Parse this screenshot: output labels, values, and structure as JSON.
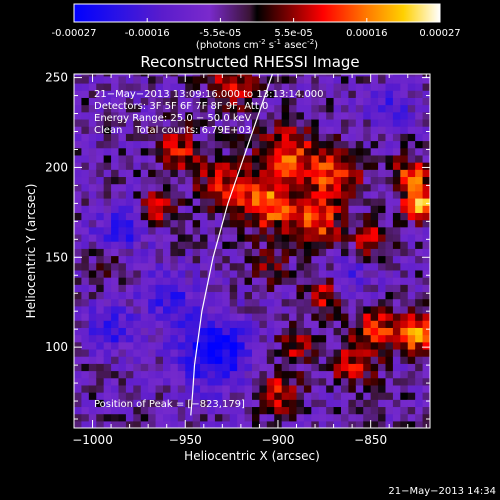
{
  "colorbar": {
    "ticks": [
      "-0.00027",
      "-0.00016",
      "-5.5e-05",
      "5.5e-05",
      "0.00016",
      "0.00027"
    ],
    "units_main": "(photons cm",
    "units_sup1": "-2",
    "units_mid1": " s",
    "units_sup2": "-1",
    "units_mid2": " asec",
    "units_sup3": "-2",
    "units_end": ")"
  },
  "chart_data": {
    "type": "heatmap",
    "title": "Reconstructed RHESSI Image",
    "xlabel": "Heliocentric X (arcsec)",
    "ylabel": "Heliocentric Y (arcsec)",
    "xlim": [
      -1010,
      -818
    ],
    "ylim": [
      55,
      252
    ],
    "x_ticks": [
      -1000,
      -950,
      -900,
      -850
    ],
    "y_ticks": [
      100,
      150,
      200,
      250
    ],
    "x_tick_labels": [
      "−1000",
      "−950",
      "−900",
      "−850"
    ],
    "y_tick_labels": [
      "100",
      "150",
      "200",
      "250"
    ],
    "colorbar_range": [
      -0.00027,
      0.00027
    ],
    "annotations": [
      "21−May−2013 13:09:16.000 to 13:13:14.000",
      "Detectors: 3F 5F 6F 7F 8F 9F, Att 0",
      "Energy Range: 25.0 − 50.0 keV",
      "Clean    Total counts: 6.79E+03"
    ],
    "peak_label": "Position of Peak = [−823,179]",
    "peak_position": [
      -823,
      179
    ],
    "limb_points": [
      [
        -903,
        252
      ],
      [
        -907,
        240
      ],
      [
        -912,
        225
      ],
      [
        -917,
        210
      ],
      [
        -922,
        195
      ],
      [
        -927,
        180
      ],
      [
        -931,
        165
      ],
      [
        -935,
        150
      ],
      [
        -938,
        135
      ],
      [
        -941,
        120
      ],
      [
        -943,
        105
      ],
      [
        -945,
        90
      ],
      [
        -946,
        75
      ],
      [
        -947,
        62
      ]
    ],
    "hot_regions": [
      {
        "x": -925,
        "y": 245,
        "strength": 0.45,
        "size": 14
      },
      {
        "x": -895,
        "y": 208,
        "strength": 0.6,
        "size": 16
      },
      {
        "x": -870,
        "y": 195,
        "strength": 0.55,
        "size": 15
      },
      {
        "x": -905,
        "y": 180,
        "strength": 0.7,
        "size": 14
      },
      {
        "x": -880,
        "y": 170,
        "strength": 0.65,
        "size": 13
      },
      {
        "x": -930,
        "y": 190,
        "strength": 0.5,
        "size": 14
      },
      {
        "x": -955,
        "y": 210,
        "strength": 0.5,
        "size": 12
      },
      {
        "x": -965,
        "y": 178,
        "strength": 0.45,
        "size": 10
      },
      {
        "x": -850,
        "y": 160,
        "strength": 0.4,
        "size": 12
      },
      {
        "x": -823,
        "y": 179,
        "strength": 1.0,
        "size": 8
      },
      {
        "x": -828,
        "y": 195,
        "strength": 0.7,
        "size": 10
      },
      {
        "x": -826,
        "y": 108,
        "strength": 0.85,
        "size": 10
      },
      {
        "x": -848,
        "y": 110,
        "strength": 0.55,
        "size": 12
      },
      {
        "x": -875,
        "y": 130,
        "strength": 0.45,
        "size": 11
      },
      {
        "x": -860,
        "y": 90,
        "strength": 0.45,
        "size": 12
      },
      {
        "x": -900,
        "y": 75,
        "strength": 0.45,
        "size": 12
      },
      {
        "x": -890,
        "y": 100,
        "strength": 0.4,
        "size": 10
      },
      {
        "x": -990,
        "y": 150,
        "strength": 0.35,
        "size": 9
      },
      {
        "x": -905,
        "y": 145,
        "strength": 0.35,
        "size": 10
      }
    ],
    "cold_regions": [
      {
        "x": -935,
        "y": 98,
        "strength": 0.9,
        "size": 20
      },
      {
        "x": -985,
        "y": 165,
        "strength": 0.6,
        "size": 14
      },
      {
        "x": -960,
        "y": 130,
        "strength": 0.55,
        "size": 14
      },
      {
        "x": -990,
        "y": 110,
        "strength": 0.5,
        "size": 14
      },
      {
        "x": -840,
        "y": 235,
        "strength": 0.45,
        "size": 12
      },
      {
        "x": -860,
        "y": 140,
        "strength": 0.4,
        "size": 12
      }
    ]
  },
  "timestamp": "21−May−2013 14:34"
}
